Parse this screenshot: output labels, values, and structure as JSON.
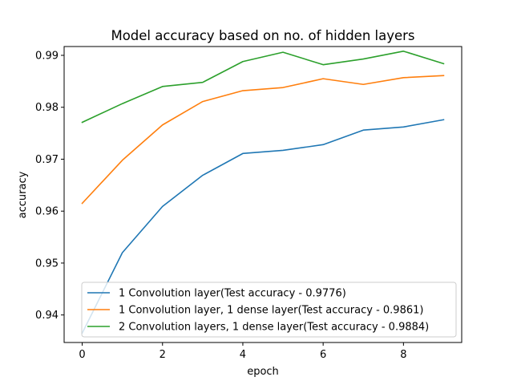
{
  "chart_data": {
    "type": "line",
    "title": "Model accuracy based on no. of hidden layers",
    "xlabel": "epoch",
    "ylabel": "accuracy",
    "xlim": [
      -0.45,
      9.45
    ],
    "ylim": [
      0.9347,
      0.9917
    ],
    "xticks": [
      0,
      2,
      4,
      6,
      8
    ],
    "xtick_labels": [
      "0",
      "2",
      "4",
      "6",
      "8"
    ],
    "yticks": [
      0.94,
      0.95,
      0.96,
      0.97,
      0.98,
      0.99
    ],
    "ytick_labels": [
      "0.94",
      "0.95",
      "0.96",
      "0.97",
      "0.98",
      "0.99"
    ],
    "grid": false,
    "legend_position": "lower-right",
    "x": [
      0,
      1,
      2,
      3,
      4,
      5,
      6,
      7,
      8,
      9
    ],
    "series": [
      {
        "name": "1 Convolution layer(Test accuracy - 0.9776)",
        "color": "#1f77b4",
        "values": [
          0.9365,
          0.952,
          0.9609,
          0.9669,
          0.9711,
          0.9717,
          0.9728,
          0.9756,
          0.9762,
          0.9776
        ]
      },
      {
        "name": "1 Convolution layer, 1 dense layer(Test accuracy - 0.9861)",
        "color": "#ff7f0e",
        "values": [
          0.9615,
          0.9698,
          0.9766,
          0.9811,
          0.9832,
          0.9838,
          0.9855,
          0.9844,
          0.9857,
          0.9861
        ]
      },
      {
        "name": "2 Convolution layers, 1 dense layer(Test accuracy - 0.9884)",
        "color": "#2ca02c",
        "values": [
          0.9771,
          0.9807,
          0.984,
          0.9848,
          0.9888,
          0.9906,
          0.9882,
          0.9893,
          0.9908,
          0.9884
        ]
      }
    ]
  }
}
